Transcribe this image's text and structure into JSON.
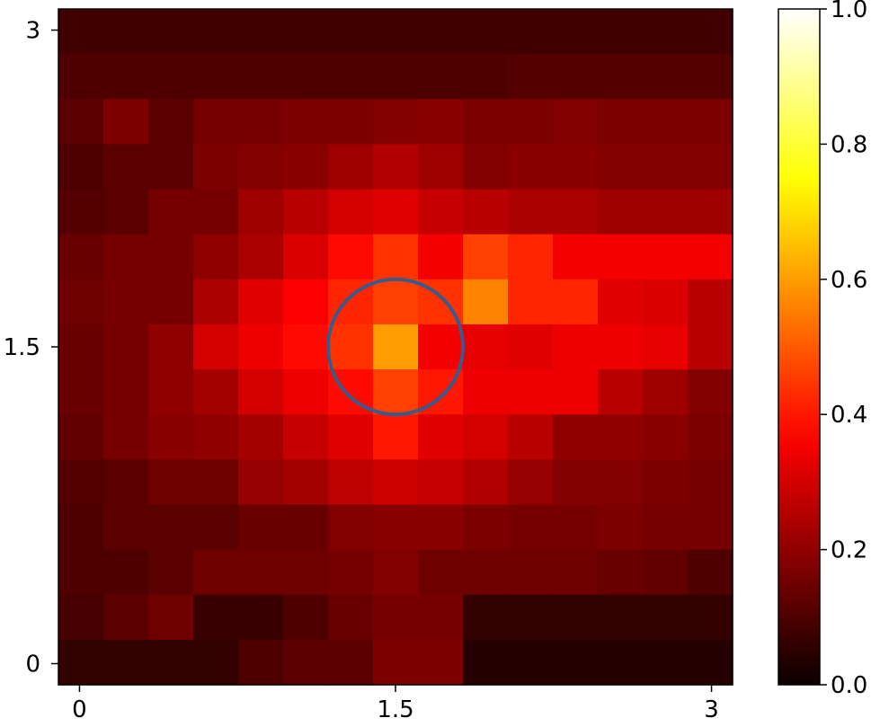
{
  "chart_data": {
    "type": "heatmap",
    "title": "",
    "xlabel": "",
    "ylabel": "",
    "xlim": [
      -0.1,
      3.1
    ],
    "ylim": [
      -0.1,
      3.1
    ],
    "x_ticks": [
      {
        "value": 0,
        "label": "0"
      },
      {
        "value": 1.5,
        "label": "1.5"
      },
      {
        "value": 3,
        "label": "3"
      }
    ],
    "y_ticks": [
      {
        "value": 0,
        "label": "0"
      },
      {
        "value": 1.5,
        "label": "1.5"
      },
      {
        "value": 3,
        "label": "3"
      }
    ],
    "colormap": "hot",
    "colorbar": {
      "range": [
        0,
        1
      ],
      "ticks": [
        {
          "value": 0.0,
          "label": "0.0"
        },
        {
          "value": 0.2,
          "label": "0.2"
        },
        {
          "value": 0.4,
          "label": "0.4"
        },
        {
          "value": 0.6,
          "label": "0.6"
        },
        {
          "value": 0.8,
          "label": "0.8"
        },
        {
          "value": 1.0,
          "label": "1.0"
        }
      ]
    },
    "grid_rows_top_to_bottom": [
      [
        0.08,
        0.08,
        0.08,
        0.08,
        0.08,
        0.08,
        0.08,
        0.08,
        0.08,
        0.08,
        0.08,
        0.08,
        0.08,
        0.08,
        0.08
      ],
      [
        0.1,
        0.1,
        0.1,
        0.1,
        0.1,
        0.1,
        0.1,
        0.1,
        0.1,
        0.1,
        0.11,
        0.11,
        0.11,
        0.11,
        0.11
      ],
      [
        0.12,
        0.17,
        0.12,
        0.16,
        0.16,
        0.17,
        0.17,
        0.18,
        0.19,
        0.17,
        0.17,
        0.18,
        0.17,
        0.17,
        0.17
      ],
      [
        0.1,
        0.12,
        0.12,
        0.17,
        0.18,
        0.19,
        0.22,
        0.25,
        0.22,
        0.18,
        0.19,
        0.19,
        0.18,
        0.18,
        0.18
      ],
      [
        0.11,
        0.12,
        0.16,
        0.16,
        0.22,
        0.26,
        0.3,
        0.32,
        0.28,
        0.26,
        0.24,
        0.24,
        0.22,
        0.22,
        0.22
      ],
      [
        0.14,
        0.16,
        0.16,
        0.2,
        0.24,
        0.31,
        0.38,
        0.44,
        0.35,
        0.46,
        0.42,
        0.35,
        0.35,
        0.35,
        0.35
      ],
      [
        0.15,
        0.16,
        0.16,
        0.24,
        0.32,
        0.36,
        0.42,
        0.46,
        0.44,
        0.56,
        0.42,
        0.42,
        0.32,
        0.31,
        0.26
      ],
      [
        0.14,
        0.16,
        0.2,
        0.3,
        0.34,
        0.38,
        0.44,
        0.6,
        0.35,
        0.33,
        0.32,
        0.34,
        0.34,
        0.33,
        0.26
      ],
      [
        0.14,
        0.16,
        0.2,
        0.23,
        0.3,
        0.34,
        0.38,
        0.46,
        0.4,
        0.34,
        0.34,
        0.34,
        0.26,
        0.22,
        0.18
      ],
      [
        0.13,
        0.16,
        0.19,
        0.2,
        0.23,
        0.28,
        0.32,
        0.4,
        0.32,
        0.3,
        0.26,
        0.2,
        0.2,
        0.19,
        0.17
      ],
      [
        0.11,
        0.12,
        0.15,
        0.15,
        0.21,
        0.23,
        0.27,
        0.29,
        0.28,
        0.25,
        0.21,
        0.18,
        0.18,
        0.17,
        0.16
      ],
      [
        0.1,
        0.12,
        0.12,
        0.12,
        0.14,
        0.14,
        0.18,
        0.19,
        0.19,
        0.17,
        0.16,
        0.16,
        0.17,
        0.16,
        0.16
      ],
      [
        0.1,
        0.1,
        0.12,
        0.15,
        0.15,
        0.15,
        0.16,
        0.18,
        0.15,
        0.15,
        0.15,
        0.15,
        0.14,
        0.13,
        0.1
      ],
      [
        0.09,
        0.12,
        0.15,
        0.07,
        0.07,
        0.1,
        0.14,
        0.16,
        0.16,
        0.06,
        0.06,
        0.06,
        0.06,
        0.06,
        0.06
      ],
      [
        0.06,
        0.06,
        0.06,
        0.06,
        0.1,
        0.12,
        0.12,
        0.17,
        0.17,
        0.04,
        0.04,
        0.04,
        0.04,
        0.04,
        0.04
      ]
    ],
    "annotation": {
      "shape": "circle",
      "center": [
        1.5,
        1.5
      ],
      "radius": 0.32,
      "color": "#3a5a8c"
    }
  }
}
